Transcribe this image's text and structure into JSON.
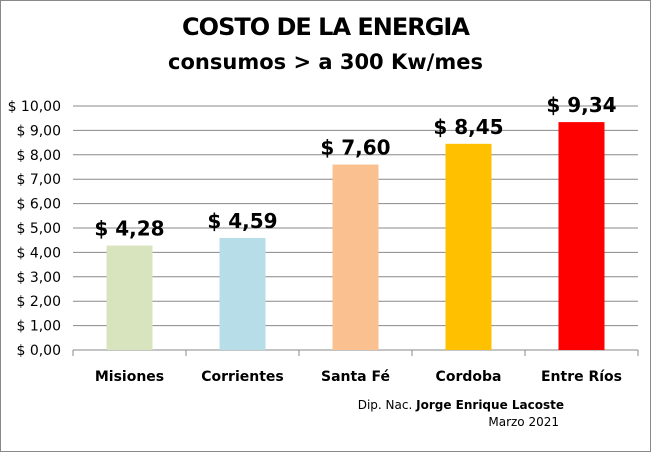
{
  "chart_data": {
    "type": "bar",
    "title": "COSTO DE LA ENERGIA",
    "subtitle": "consumos > a 300 Kw/mes",
    "categories": [
      "Misiones",
      "Corrientes",
      "Santa Fé",
      "Cordoba",
      "Entre Ríos"
    ],
    "values": [
      4.28,
      4.59,
      7.6,
      8.45,
      9.34
    ],
    "data_labels": [
      "$ 4,28",
      "$ 4,59",
      "$ 7,60",
      "$ 8,45",
      "$ 9,34"
    ],
    "colors": [
      "#D7E4BD",
      "#B7DEE8",
      "#FAC090",
      "#FFC000",
      "#FF0000"
    ],
    "ylim": [
      0,
      10
    ],
    "yticks": [
      "$ 0,00",
      "$ 1,00",
      "$ 2,00",
      "$ 3,00",
      "$ 4,00",
      "$ 5,00",
      "$ 6,00",
      "$ 7,00",
      "$ 8,00",
      "$ 9,00",
      "$ 10,00"
    ],
    "grid": true,
    "xlabel": "",
    "ylabel": ""
  },
  "credit": {
    "prefix": "Dip. Nac.",
    "name": "Jorge Enrique Lacoste",
    "date": "Marzo 2021"
  }
}
